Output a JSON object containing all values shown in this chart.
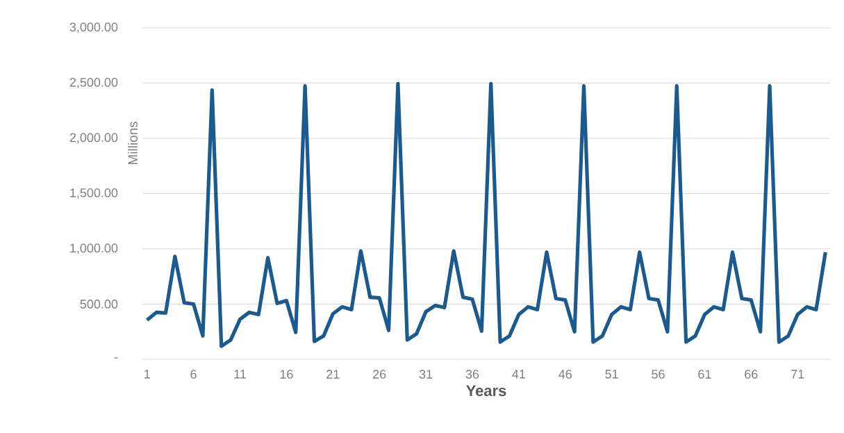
{
  "chart_data": {
    "type": "line",
    "xlabel": "Years",
    "ylabel": "Millions",
    "categories": [
      "1",
      null,
      null,
      null,
      null,
      "6",
      null,
      null,
      null,
      null,
      "11",
      null,
      null,
      null,
      null,
      "16",
      null,
      null,
      null,
      null,
      "21",
      null,
      null,
      null,
      null,
      "26",
      null,
      null,
      null,
      null,
      "31",
      null,
      null,
      null,
      null,
      "36",
      null,
      null,
      null,
      null,
      "41",
      null,
      null,
      null,
      null,
      "46",
      null,
      null,
      null,
      null,
      "51",
      null,
      null,
      null,
      null,
      "56",
      null,
      null,
      null,
      null,
      "61",
      null,
      null,
      null,
      null,
      "66",
      null,
      null,
      null,
      null,
      "71",
      null,
      null,
      null
    ],
    "series": [
      {
        "color": "#1b5a8e",
        "values": [
          356,
          425,
          419,
          931,
          512,
          500,
          212,
          2437,
          119,
          175,
          362,
          425,
          406,
          919,
          506,
          531,
          244,
          2475,
          162,
          212,
          412,
          475,
          450,
          981,
          562,
          556,
          262,
          2494,
          175,
          231,
          431,
          487,
          469,
          981,
          562,
          544,
          256,
          2494,
          156,
          212,
          406,
          475,
          450,
          969,
          550,
          537,
          250,
          2475,
          156,
          212,
          406,
          475,
          450,
          969,
          550,
          537,
          250,
          2475,
          156,
          212,
          406,
          475,
          450,
          969,
          550,
          537,
          250,
          2475,
          156,
          212,
          406,
          475,
          450,
          969
        ]
      }
    ],
    "ylim": [
      0,
      3000
    ],
    "yticks": [
      {
        "value": 0,
        "label": "-"
      },
      {
        "value": 500,
        "label": "500.00"
      },
      {
        "value": 1000,
        "label": "1,000.00"
      },
      {
        "value": 1500,
        "label": "1,500.00"
      },
      {
        "value": 2000,
        "label": "2,000.00"
      },
      {
        "value": 2500,
        "label": "2,500.00"
      },
      {
        "value": 3000,
        "label": "3,000.00"
      }
    ],
    "grid": "y"
  }
}
